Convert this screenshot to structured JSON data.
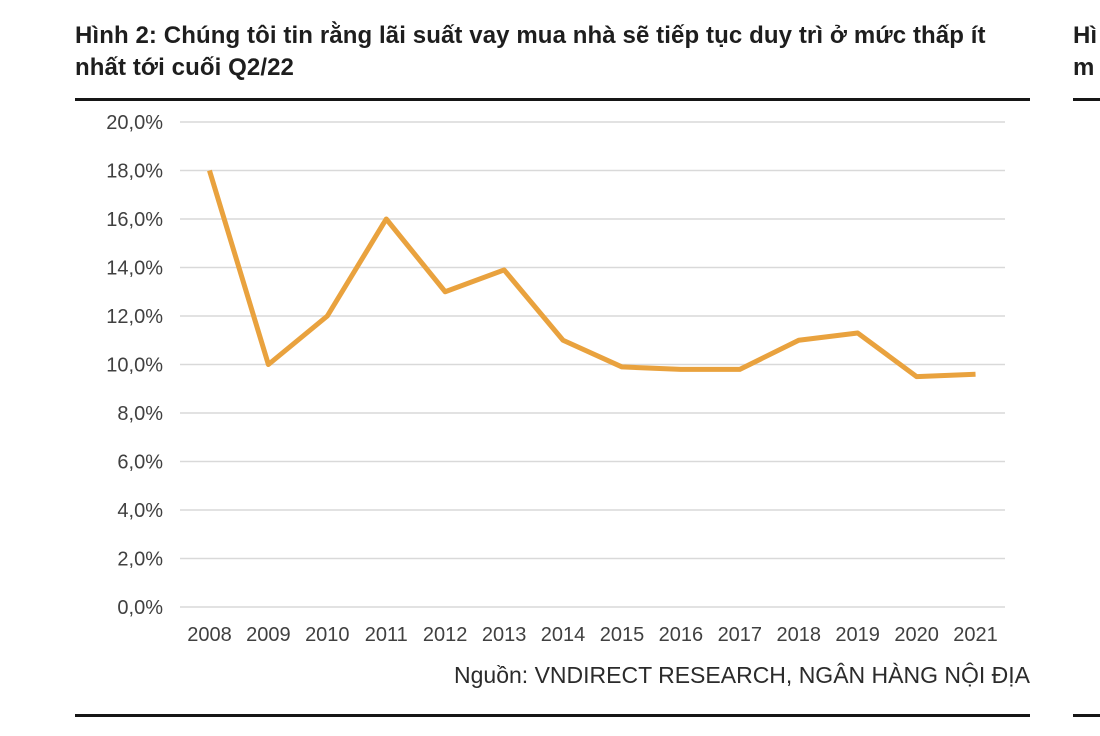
{
  "page": {
    "background": "#ffffff",
    "divider_color": "#161616"
  },
  "figure": {
    "title": "Hình 2: Chúng tôi tin rằng lãi suất vay mua nhà sẽ tiếp tục duy trì ở mức thấp ít nhất tới cuối Q2/22",
    "source": "Nguồn: VNDIRECT RESEARCH, NGÂN HÀNG NỘI ĐỊA"
  },
  "next_column_fragment": {
    "title_line1": "Hì",
    "title_line2": "m"
  },
  "chart_data": {
    "type": "line",
    "title": "Hình 2: Chúng tôi tin rằng lãi suất vay mua nhà sẽ tiếp tục duy trì ở mức thấp ít nhất tới cuối Q2/22",
    "categories": [
      "2008",
      "2009",
      "2010",
      "2011",
      "2012",
      "2013",
      "2014",
      "2015",
      "2016",
      "2017",
      "2018",
      "2019",
      "2020",
      "2021"
    ],
    "values": [
      18.0,
      10.0,
      12.0,
      16.0,
      13.0,
      13.9,
      11.0,
      9.9,
      9.8,
      9.8,
      11.0,
      11.3,
      9.5,
      9.6
    ],
    "y_ticks": [
      "20,0%",
      "18,0%",
      "16,0%",
      "14,0%",
      "12,0%",
      "10,0%",
      "8,0%",
      "6,0%",
      "4,0%",
      "2,0%",
      "0,0%"
    ],
    "ylim": [
      0,
      20
    ],
    "y_step": 2,
    "xlabel": "",
    "ylabel": "",
    "legend": "none",
    "grid": "horizontal",
    "decimal_separator": ",",
    "line_color": "#E9A23E",
    "gridline_color": "#D9D9D9",
    "axis_label_color": "#404040"
  }
}
